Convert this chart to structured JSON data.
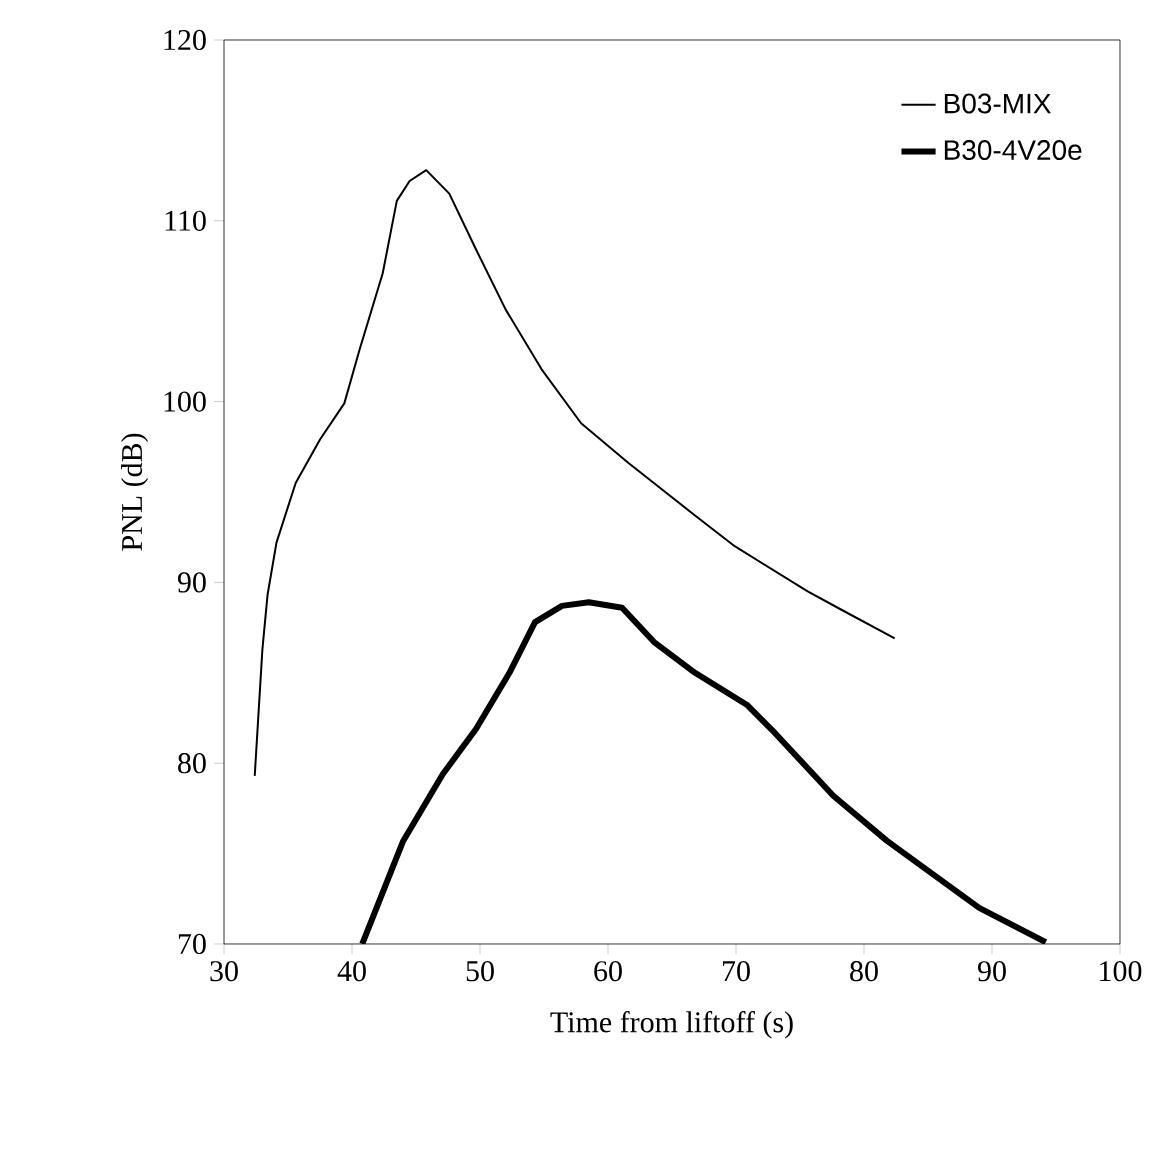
{
  "chart_data": {
    "type": "line",
    "xlabel": "Time from liftoff (s)",
    "ylabel": "PNL (dB)",
    "xlim": [
      30,
      100
    ],
    "ylim": [
      70,
      120
    ],
    "xticks": [
      30,
      40,
      50,
      60,
      70,
      80,
      90,
      100
    ],
    "yticks": [
      70,
      80,
      90,
      100,
      110,
      120
    ],
    "grid": false,
    "legend": "top right",
    "marker": "none",
    "line_style": "solid",
    "series": [
      {
        "name": "B03-MIX",
        "color": "#000000",
        "x": [
          32.4,
          33.0,
          33.4,
          34.1,
          35.6,
          37.5,
          39.4,
          40.6,
          42.4,
          43.5,
          44.5,
          45.8,
          47.6,
          49.7,
          52.0,
          54.8,
          57.9,
          61.6,
          66.8,
          69.9,
          75.6,
          78.2,
          82.4
        ],
        "values": [
          79.3,
          86.3,
          89.3,
          92.2,
          95.5,
          97.9,
          99.9,
          102.9,
          107.1,
          111.1,
          112.2,
          112.8,
          111.5,
          108.4,
          105.1,
          101.8,
          98.8,
          96.6,
          93.7,
          92.0,
          89.5,
          88.5,
          86.9
        ]
      },
      {
        "name": "B30-4V20e",
        "color": "#000000",
        "x": [
          40.8,
          44.0,
          47.1,
          49.7,
          52.3,
          54.3,
          56.4,
          58.5,
          61.1,
          63.6,
          66.8,
          70.9,
          73.0,
          77.6,
          81.8,
          89.0,
          94.2
        ],
        "values": [
          70.0,
          75.7,
          79.4,
          81.9,
          85.0,
          87.8,
          88.7,
          88.9,
          88.6,
          86.7,
          85.0,
          83.2,
          81.7,
          78.2,
          75.7,
          72.0,
          70.1
        ]
      }
    ]
  }
}
